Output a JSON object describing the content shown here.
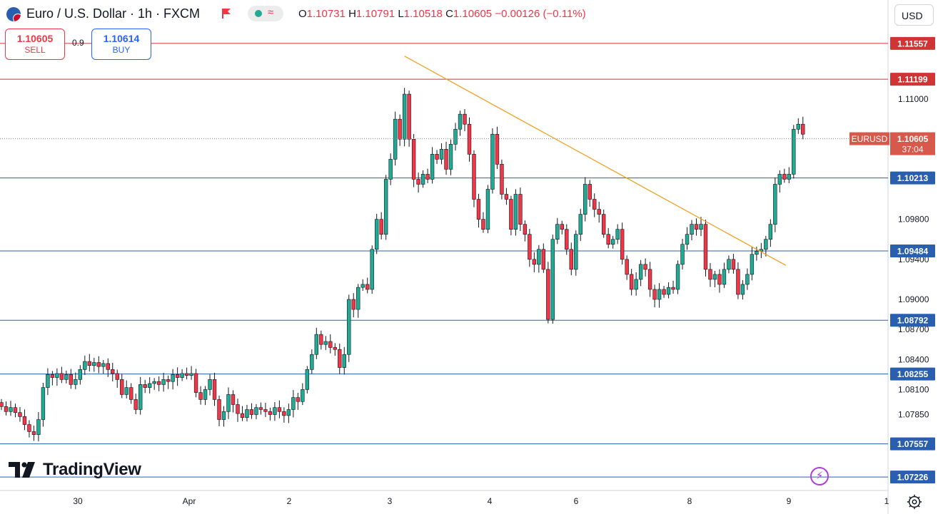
{
  "header": {
    "title": "Euro / U.S. Dollar · 1h · FXCM",
    "ohlc": [
      {
        "label": "O",
        "value": "1.10731"
      },
      {
        "label": "H",
        "value": "1.10791"
      },
      {
        "label": "L",
        "value": "1.10518"
      },
      {
        "label": "C",
        "value": "1.10605"
      }
    ],
    "change": "−0.00126 (−0.11%)"
  },
  "trade": {
    "sell_price": "1.10605",
    "sell_label": "SELL",
    "buy_price": "1.10614",
    "buy_label": "BUY",
    "spread": "0.9"
  },
  "currency_button": "USD",
  "brand": "TradingView",
  "colors": {
    "up": "#22ab94",
    "down": "#f23645",
    "resistance": "#d03434",
    "support": "#2a5fb0",
    "trendline": "#f0a020",
    "current_price": "#d6594c"
  },
  "icons": [
    "currency-pair-icon",
    "flag-icon",
    "market-status-icon",
    "tradingview-logo-icon",
    "flash-icon",
    "settings-gear-icon"
  ],
  "chart_data": {
    "type": "candlestick",
    "symbol": "EURUSD",
    "timeframe": "1h",
    "ylim": [
      1.0706,
      1.1186
    ],
    "y_ticks": [
      1.0785,
      1.081,
      1.084,
      1.087,
      1.09,
      1.094,
      1.098,
      1.11
    ],
    "x_ticks": [
      "30",
      "Apr",
      "2",
      "3",
      "4",
      "6",
      "8",
      "9",
      "1"
    ],
    "current_price": {
      "label": "EURUSD",
      "value": "1.10605",
      "countdown": "37:04"
    },
    "horizontal_levels": [
      {
        "value": 1.11557,
        "label": "1.11557",
        "kind": "resistance"
      },
      {
        "value": 1.11199,
        "label": "1.11199",
        "kind": "resistance"
      },
      {
        "value": 1.10213,
        "label": "1.10213",
        "kind": "support"
      },
      {
        "value": 1.09484,
        "label": "1.09484",
        "kind": "support"
      },
      {
        "value": 1.08792,
        "label": "1.08792",
        "kind": "support"
      },
      {
        "value": 1.08255,
        "label": "1.08255",
        "kind": "support"
      },
      {
        "value": 1.07557,
        "label": "1.07557",
        "kind": "support"
      },
      {
        "value": 1.07226,
        "label": "1.07226",
        "kind": "support"
      }
    ],
    "trendline": {
      "from": {
        "bar": 87,
        "price": 1.1143
      },
      "to": {
        "bar": 169,
        "price": 1.0934
      }
    },
    "candles": [
      [
        1.0797,
        1.0793
      ],
      [
        1.0793,
        1.0788
      ],
      [
        1.0788,
        1.0792
      ],
      [
        1.0792,
        1.0787
      ],
      [
        1.0787,
        1.0783
      ],
      [
        1.0783,
        1.0775
      ],
      [
        1.0775,
        1.0768
      ],
      [
        1.0768,
        1.0765
      ],
      [
        1.0765,
        1.078
      ],
      [
        1.078,
        1.0812
      ],
      [
        1.0812,
        1.0825
      ],
      [
        1.0825,
        1.0822
      ],
      [
        1.0822,
        1.0826
      ],
      [
        1.0826,
        1.082
      ],
      [
        1.082,
        1.0825
      ],
      [
        1.0825,
        1.0815
      ],
      [
        1.0815,
        1.082
      ],
      [
        1.082,
        1.083
      ],
      [
        1.083,
        1.0838
      ],
      [
        1.0838,
        1.0834
      ],
      [
        1.0834,
        1.0837
      ],
      [
        1.0837,
        1.0833
      ],
      [
        1.0833,
        1.0836
      ],
      [
        1.0836,
        1.083
      ],
      [
        1.083,
        1.0826
      ],
      [
        1.0826,
        1.082
      ],
      [
        1.082,
        1.0805
      ],
      [
        1.0805,
        1.0812
      ],
      [
        1.0812,
        1.08
      ],
      [
        1.08,
        1.079
      ],
      [
        1.079,
        1.0815
      ],
      [
        1.0815,
        1.0812
      ],
      [
        1.0812,
        1.0816
      ],
      [
        1.0816,
        1.0818
      ],
      [
        1.0818,
        1.0815
      ],
      [
        1.0815,
        1.082
      ],
      [
        1.082,
        1.0818
      ],
      [
        1.0818,
        1.0825
      ],
      [
        1.0825,
        1.0822
      ],
      [
        1.0822,
        1.0826
      ],
      [
        1.0826,
        1.0824
      ],
      [
        1.0824,
        1.0826
      ],
      [
        1.0826,
        1.0807
      ],
      [
        1.0807,
        1.08
      ],
      [
        1.08,
        1.081
      ],
      [
        1.081,
        1.082
      ],
      [
        1.082,
        1.08
      ],
      [
        1.08,
        1.078
      ],
      [
        1.078,
        1.0788
      ],
      [
        1.0788,
        1.0805
      ],
      [
        1.0805,
        1.0795
      ],
      [
        1.0795,
        1.0786
      ],
      [
        1.0786,
        1.0782
      ],
      [
        1.0782,
        1.079
      ],
      [
        1.079,
        1.0785
      ],
      [
        1.0785,
        1.0792
      ],
      [
        1.0792,
        1.079
      ],
      [
        1.079,
        1.0788
      ],
      [
        1.0788,
        1.0785
      ],
      [
        1.0785,
        1.0792
      ],
      [
        1.0792,
        1.0788
      ],
      [
        1.0788,
        1.0784
      ],
      [
        1.0784,
        1.079
      ],
      [
        1.079,
        1.0802
      ],
      [
        1.0802,
        1.0798
      ],
      [
        1.0798,
        1.081
      ],
      [
        1.081,
        1.083
      ],
      [
        1.083,
        1.0845
      ],
      [
        1.0845,
        1.0865
      ],
      [
        1.0865,
        1.0855
      ],
      [
        1.0855,
        1.0858
      ],
      [
        1.0858,
        1.0852
      ],
      [
        1.0852,
        1.085
      ],
      [
        1.085,
        1.0832
      ],
      [
        1.0832,
        1.0845
      ],
      [
        1.0845,
        1.09
      ],
      [
        1.09,
        1.089
      ],
      [
        1.089,
        1.0912
      ],
      [
        1.0912,
        1.0915
      ],
      [
        1.0915,
        1.091
      ],
      [
        1.091,
        1.095
      ],
      [
        1.095,
        1.098
      ],
      [
        1.098,
        1.0965
      ],
      [
        1.0965,
        1.102
      ],
      [
        1.102,
        1.104
      ],
      [
        1.104,
        1.108
      ],
      [
        1.108,
        1.106
      ],
      [
        1.106,
        1.1105
      ],
      [
        1.1105,
        1.106
      ],
      [
        1.106,
        1.102
      ],
      [
        1.102,
        1.1015
      ],
      [
        1.1015,
        1.1025
      ],
      [
        1.1025,
        1.102
      ],
      [
        1.102,
        1.1045
      ],
      [
        1.1045,
        1.104
      ],
      [
        1.104,
        1.105
      ],
      [
        1.105,
        1.103
      ],
      [
        1.103,
        1.1055
      ],
      [
        1.1055,
        1.107
      ],
      [
        1.107,
        1.1085
      ],
      [
        1.1085,
        1.1075
      ],
      [
        1.1075,
        1.1045
      ],
      [
        1.1045,
        1.1
      ],
      [
        1.1,
        1.098
      ],
      [
        1.098,
        1.097
      ],
      [
        1.097,
        1.101
      ],
      [
        1.101,
        1.1065
      ],
      [
        1.1065,
        1.1035
      ],
      [
        1.1035,
        1.1005
      ],
      [
        1.1005,
        1.1
      ],
      [
        1.1,
        1.097
      ],
      [
        1.097,
        1.1005
      ],
      [
        1.1005,
        1.0975
      ],
      [
        1.0975,
        1.0965
      ],
      [
        1.0965,
        1.094
      ],
      [
        1.094,
        1.0935
      ],
      [
        1.0935,
        1.095
      ],
      [
        1.095,
        1.093
      ],
      [
        1.093,
        1.088
      ],
      [
        1.088,
        1.096
      ],
      [
        1.096,
        1.0975
      ],
      [
        1.0975,
        1.097
      ],
      [
        1.097,
        1.095
      ],
      [
        1.095,
        1.093
      ],
      [
        1.093,
        1.0965
      ],
      [
        1.0965,
        1.0985
      ],
      [
        1.0985,
        1.1015
      ],
      [
        1.1015,
        1.1
      ],
      [
        1.1,
        1.099
      ],
      [
        1.099,
        1.0985
      ],
      [
        1.0985,
        1.0965
      ],
      [
        1.0965,
        1.0955
      ],
      [
        1.0955,
        1.096
      ],
      [
        1.096,
        1.097
      ],
      [
        1.097,
        1.094
      ],
      [
        1.094,
        1.0925
      ],
      [
        1.0925,
        1.091
      ],
      [
        1.091,
        1.092
      ],
      [
        1.092,
        1.0935
      ],
      [
        1.0935,
        1.093
      ],
      [
        1.093,
        1.091
      ],
      [
        1.091,
        1.09
      ],
      [
        1.09,
        1.091
      ],
      [
        1.091,
        1.0905
      ],
      [
        1.0905,
        1.0912
      ],
      [
        1.0912,
        1.091
      ],
      [
        1.091,
        1.0935
      ],
      [
        1.0935,
        1.0955
      ],
      [
        1.0955,
        1.0965
      ],
      [
        1.0965,
        1.0975
      ],
      [
        1.0975,
        1.097
      ],
      [
        1.097,
        1.0975
      ],
      [
        1.0975,
        1.093
      ],
      [
        1.093,
        1.092
      ],
      [
        1.092,
        1.0925
      ],
      [
        1.0925,
        1.0915
      ],
      [
        1.0915,
        1.093
      ],
      [
        1.093,
        1.094
      ],
      [
        1.094,
        1.093
      ],
      [
        1.093,
        1.0905
      ],
      [
        1.0905,
        1.0915
      ],
      [
        1.0915,
        1.0925
      ],
      [
        1.0925,
        1.0945
      ],
      [
        1.0945,
        1.0948
      ],
      [
        1.0948,
        1.095
      ],
      [
        1.095,
        1.096
      ],
      [
        1.096,
        1.0975
      ],
      [
        1.0975,
        1.1015
      ],
      [
        1.1015,
        1.1025
      ],
      [
        1.1025,
        1.102
      ],
      [
        1.102,
        1.1025
      ],
      [
        1.1025,
        1.107
      ],
      [
        1.107,
        1.1075
      ],
      [
        1.1075,
        1.1065
      ]
    ]
  }
}
